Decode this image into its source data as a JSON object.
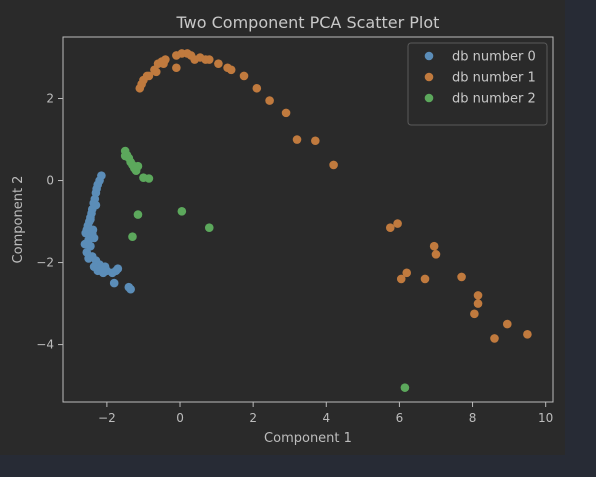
{
  "chart_data": {
    "type": "scatter",
    "title": "Two Component PCA Scatter Plot",
    "xlabel": "Component 1",
    "ylabel": "Component 2",
    "xlim": [
      -3.2,
      10.2
    ],
    "ylim": [
      -5.4,
      3.5
    ],
    "xticks": [
      -2,
      0,
      2,
      4,
      6,
      8,
      10
    ],
    "yticks": [
      -4,
      -2,
      0,
      2
    ],
    "xtick_labels": [
      "−2",
      "0",
      "2",
      "4",
      "6",
      "8",
      "10"
    ],
    "ytick_labels": [
      "−4",
      "−2",
      "0",
      "2"
    ],
    "grid": false,
    "legend_position": "top-right",
    "series": [
      {
        "name": "db number 0",
        "color": "#5b8db8",
        "points": [
          [
            -2.15,
            0.12
          ],
          [
            -2.2,
            0.0
          ],
          [
            -2.25,
            -0.1
          ],
          [
            -2.28,
            -0.2
          ],
          [
            -2.3,
            -0.3
          ],
          [
            -2.33,
            -0.45
          ],
          [
            -2.36,
            -0.55
          ],
          [
            -2.4,
            -0.7
          ],
          [
            -2.42,
            -0.8
          ],
          [
            -2.45,
            -0.9
          ],
          [
            -2.48,
            -1.0
          ],
          [
            -2.52,
            -1.1
          ],
          [
            -2.55,
            -1.2
          ],
          [
            -2.58,
            -1.28
          ],
          [
            -2.4,
            -1.3
          ],
          [
            -2.35,
            -1.4
          ],
          [
            -2.6,
            -1.55
          ],
          [
            -2.45,
            -1.6
          ],
          [
            -2.55,
            -1.75
          ],
          [
            -2.4,
            -1.85
          ],
          [
            -2.5,
            -1.9
          ],
          [
            -2.3,
            -1.95
          ],
          [
            -2.2,
            -2.05
          ],
          [
            -2.35,
            -2.1
          ],
          [
            -2.15,
            -2.15
          ],
          [
            -2.25,
            -2.2
          ],
          [
            -2.0,
            -2.2
          ],
          [
            -2.05,
            -2.1
          ],
          [
            -1.85,
            -2.25
          ],
          [
            -1.75,
            -2.2
          ],
          [
            -1.7,
            -2.15
          ],
          [
            -1.8,
            -2.5
          ],
          [
            -1.4,
            -2.6
          ],
          [
            -1.35,
            -2.65
          ],
          [
            -2.45,
            -0.95
          ],
          [
            -2.3,
            -0.6
          ],
          [
            -2.5,
            -1.45
          ],
          [
            -2.1,
            -2.25
          ],
          [
            -2.38,
            -1.2
          ]
        ]
      },
      {
        "name": "db number 1",
        "color": "#c07a3e",
        "points": [
          [
            -1.1,
            2.25
          ],
          [
            -1.05,
            2.35
          ],
          [
            -1.0,
            2.45
          ],
          [
            -0.9,
            2.55
          ],
          [
            -0.85,
            2.55
          ],
          [
            -0.7,
            2.7
          ],
          [
            -0.65,
            2.65
          ],
          [
            -0.6,
            2.85
          ],
          [
            -0.5,
            2.9
          ],
          [
            -0.4,
            2.95
          ],
          [
            -0.45,
            2.85
          ],
          [
            -0.1,
            3.05
          ],
          [
            0.05,
            3.1
          ],
          [
            0.2,
            3.1
          ],
          [
            0.3,
            3.05
          ],
          [
            0.4,
            2.95
          ],
          [
            0.55,
            3.0
          ],
          [
            0.7,
            2.95
          ],
          [
            0.8,
            2.95
          ],
          [
            -0.1,
            2.75
          ],
          [
            1.05,
            2.85
          ],
          [
            1.3,
            2.75
          ],
          [
            1.4,
            2.7
          ],
          [
            1.75,
            2.55
          ],
          [
            2.1,
            2.25
          ],
          [
            2.45,
            1.95
          ],
          [
            2.9,
            1.65
          ],
          [
            3.2,
            1.0
          ],
          [
            3.7,
            0.97
          ],
          [
            4.2,
            0.38
          ],
          [
            5.75,
            -1.15
          ],
          [
            5.95,
            -1.05
          ],
          [
            6.05,
            -2.4
          ],
          [
            6.2,
            -2.25
          ],
          [
            6.7,
            -2.4
          ],
          [
            6.95,
            -1.6
          ],
          [
            7.0,
            -1.8
          ],
          [
            7.7,
            -2.35
          ],
          [
            8.15,
            -2.8
          ],
          [
            8.15,
            -3.0
          ],
          [
            8.05,
            -3.25
          ],
          [
            8.95,
            -3.5
          ],
          [
            8.6,
            -3.85
          ],
          [
            9.5,
            -3.75
          ]
        ]
      },
      {
        "name": "db number 2",
        "color": "#5ca85c",
        "points": [
          [
            -1.5,
            0.72
          ],
          [
            -1.45,
            0.62
          ],
          [
            -1.4,
            0.55
          ],
          [
            -1.35,
            0.45
          ],
          [
            -1.3,
            0.38
          ],
          [
            -1.25,
            0.3
          ],
          [
            -1.2,
            0.24
          ],
          [
            -1.15,
            0.35
          ],
          [
            -1.5,
            0.6
          ],
          [
            -1.0,
            0.07
          ],
          [
            -0.85,
            0.05
          ],
          [
            -1.15,
            -0.83
          ],
          [
            0.05,
            -0.75
          ],
          [
            0.8,
            -1.15
          ],
          [
            -1.3,
            -1.37
          ],
          [
            6.15,
            -5.05
          ]
        ]
      }
    ]
  }
}
